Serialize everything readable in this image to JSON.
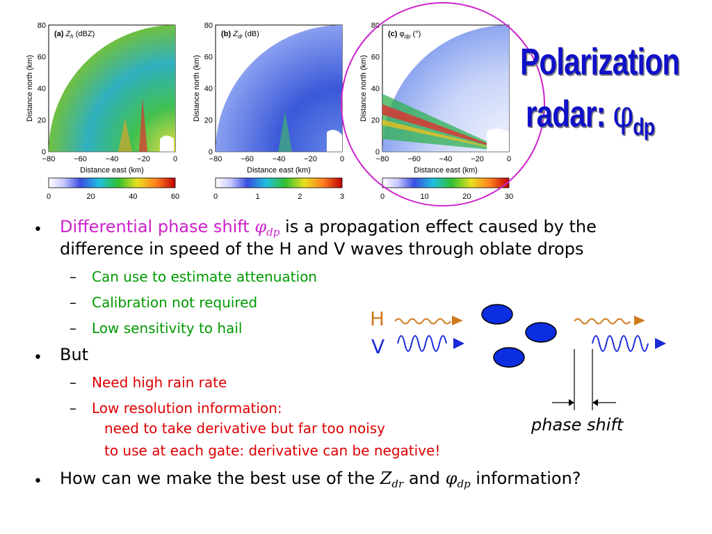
{
  "title": {
    "line1": "Polarization",
    "line2_prefix": "radar: ",
    "line2_symbol": "φ",
    "line2_sub": "dp"
  },
  "panels": [
    {
      "tag": "(a)",
      "var_main": "Z",
      "var_sub": "h",
      "unit": "(dBZ)",
      "colorbar_ticks": [
        "0",
        "20",
        "40",
        "60"
      ]
    },
    {
      "tag": "(b)",
      "var_main": "Z",
      "var_sub": "dr",
      "unit": "(dB)",
      "colorbar_ticks": [
        "0",
        "1",
        "2",
        "3"
      ]
    },
    {
      "tag": "(c)",
      "var_main": "φ",
      "var_sub": "dp",
      "unit": "(°)",
      "colorbar_ticks": [
        "0",
        "10",
        "20",
        "30"
      ]
    }
  ],
  "axes": {
    "ylabel": "Distance north (km)",
    "xlabel": "Distance east (km)",
    "yticks": [
      "0",
      "20",
      "40",
      "60",
      "80"
    ],
    "xticks": [
      "−80",
      "−60",
      "−40",
      "−20",
      "0"
    ]
  },
  "bullets": {
    "b1_lead": "Differential phase shift ",
    "b1_sym": "φ",
    "b1_sub": "dp",
    "b1_rest": " is a propagation effect caused by the",
    "b1_line2": "difference in speed of the H and V waves through oblate drops",
    "sub1": [
      "Can use to estimate attenuation",
      "Calibration not required",
      "Low sensitivity to hail"
    ],
    "b2": "But",
    "sub2_1": "Need high rain rate",
    "sub2_2": "Low resolution information:",
    "sub2_2_line2": "need to take derivative but far too noisy",
    "sub2_2_line3": "to use at each gate: derivative can be negative!",
    "b3_lead": "How can we make the best use of the ",
    "b3_z": "Z",
    "b3_zsub": "dr",
    "b3_and": " and ",
    "b3_phi": "φ",
    "b3_phisub": "dp",
    "b3_rest": " information?",
    "dash": "–",
    "dot": "•"
  },
  "diagram": {
    "h_label": "H",
    "v_label": "V",
    "phase_shift_label": "phase shift",
    "colors": {
      "h_wave": "#d07a20",
      "v_wave": "#1a2ad8",
      "drop": "#0a2ee0",
      "circle": "#cc22cc"
    }
  }
}
